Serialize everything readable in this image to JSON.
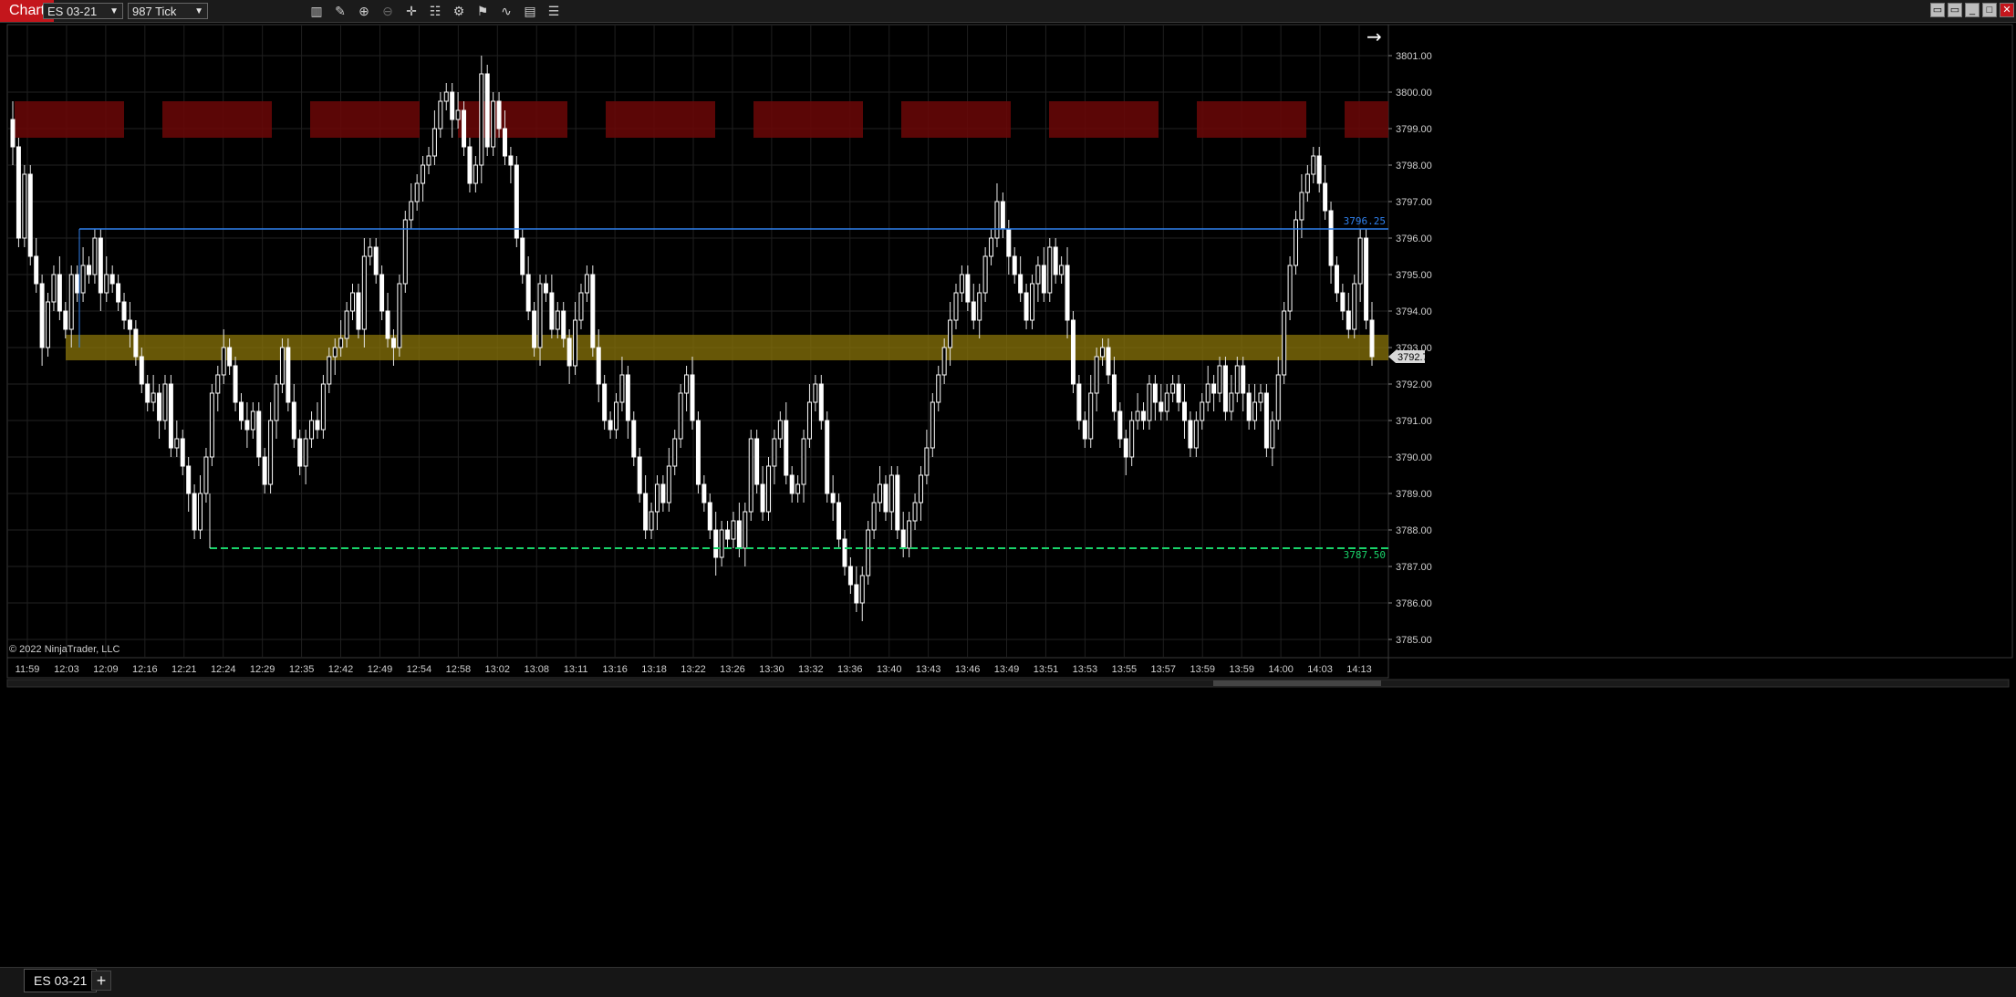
{
  "app": {
    "title": "Chart"
  },
  "toolbar": {
    "instrument": "ES 03-21",
    "period": "987 Tick",
    "icons": [
      "bar-style-icon",
      "drawing-tool-icon",
      "zoom-in-icon",
      "zoom-out-icon",
      "crosshair-icon",
      "data-box-icon",
      "properties-icon",
      "strategies-icon",
      "indicators-icon",
      "templates-icon",
      "chart-trader-icon"
    ]
  },
  "footer": {
    "tab_label": "ES 03-21",
    "add_tab_symbol": "+"
  },
  "copyright": "© 2022 NinjaTrader, LLC",
  "chart_data": {
    "type": "candlestick",
    "y_ticks": [
      3785,
      3786,
      3787,
      3788,
      3789,
      3790,
      3791,
      3792,
      3793,
      3794,
      3795,
      3796,
      3797,
      3798,
      3799,
      3800,
      3801
    ],
    "ylim": [
      3784.5,
      3801.85
    ],
    "x_ticks": [
      "11:59",
      "12:03",
      "12:09",
      "12:16",
      "12:21",
      "12:24",
      "12:29",
      "12:35",
      "12:42",
      "12:49",
      "12:54",
      "12:58",
      "13:02",
      "13:08",
      "13:11",
      "13:16",
      "13:18",
      "13:22",
      "13:26",
      "13:30",
      "13:32",
      "13:36",
      "13:40",
      "13:43",
      "13:46",
      "13:49",
      "13:51",
      "13:53",
      "13:55",
      "13:57",
      "13:59",
      "13:59",
      "14:00",
      "14:03",
      "14:13"
    ],
    "price_levels": [
      {
        "value": "3796.25",
        "color": "#2f80ed"
      },
      {
        "value": "3787.50",
        "color": "#19d36a"
      }
    ],
    "zone": {
      "low": 3792.75,
      "high": 3793.25,
      "color": "#8a7409"
    },
    "current_price": "3792.75",
    "session_blocks": {
      "low": 3798.75,
      "high": 3799.75,
      "color": "#6b0707"
    },
    "closes": [
      3798.5,
      3796,
      3797.75,
      3795.5,
      3794.75,
      3793,
      3794.25,
      3795,
      3794,
      3793.5,
      3795,
      3794.5,
      3795.25,
      3795,
      3796,
      3794.5,
      3795,
      3794.75,
      3794.25,
      3793.75,
      3793.5,
      3792.75,
      3792,
      3791.5,
      3791.75,
      3791,
      3792,
      3790.25,
      3790.5,
      3789.75,
      3789,
      3788,
      3789,
      3790,
      3791.75,
      3792.25,
      3793,
      3792.5,
      3791.5,
      3791,
      3790.75,
      3791.25,
      3790,
      3789.25,
      3791,
      3792,
      3793,
      3791.5,
      3790.5,
      3789.75,
      3790.5,
      3791,
      3790.75,
      3792,
      3792.75,
      3793,
      3793.25,
      3794,
      3794.5,
      3793.5,
      3795.5,
      3795.75,
      3795,
      3794,
      3793.25,
      3793,
      3794.75,
      3796.5,
      3797,
      3797.5,
      3798,
      3798.25,
      3799,
      3799.75,
      3800,
      3799.25,
      3799.5,
      3798.5,
      3797.5,
      3798,
      3800.5,
      3798.5,
      3799.75,
      3799,
      3798.25,
      3798,
      3796,
      3795,
      3794,
      3793,
      3794.75,
      3794.5,
      3793.5,
      3794,
      3793.25,
      3792.5,
      3793.75,
      3794.5,
      3795,
      3793,
      3792,
      3791,
      3790.75,
      3791.5,
      3792.25,
      3791,
      3790,
      3789,
      3788,
      3788.5,
      3789.25,
      3788.75,
      3789.75,
      3790.5,
      3791.75,
      3792.25,
      3791,
      3789.25,
      3788.75,
      3788,
      3787.25,
      3788,
      3787.75,
      3788.25,
      3787.5,
      3788.5,
      3790.5,
      3789.25,
      3788.5,
      3789.75,
      3790.5,
      3791,
      3789.5,
      3789,
      3789.25,
      3790.5,
      3791.5,
      3792,
      3791,
      3789,
      3788.75,
      3787.75,
      3787,
      3786.5,
      3786,
      3786.75,
      3788,
      3788.75,
      3789.25,
      3788.5,
      3789.5,
      3788,
      3787.5,
      3788.25,
      3788.75,
      3789.5,
      3790.25,
      3791.5,
      3792.25,
      3793,
      3793.75,
      3794.5,
      3795,
      3794.25,
      3793.75,
      3794.5,
      3795.5,
      3796,
      3797,
      3796.25,
      3795.5,
      3795,
      3794.5,
      3793.75,
      3794.75,
      3795.25,
      3794.5,
      3795.75,
      3795,
      3795.25,
      3793.75,
      3792,
      3791,
      3790.5,
      3791.75,
      3792.75,
      3793,
      3792.25,
      3791.25,
      3790.5,
      3790,
      3791,
      3791.25,
      3791,
      3792,
      3791.5,
      3791.25,
      3791.75,
      3792,
      3791.5,
      3791,
      3790.25,
      3791,
      3791.5,
      3792,
      3791.75,
      3792.5,
      3791.25,
      3791.75,
      3792.5,
      3791.75,
      3791,
      3791.5,
      3791.75,
      3790.25,
      3791,
      3792.25,
      3794,
      3795.25,
      3796.5,
      3797.25,
      3797.75,
      3798.25,
      3797.5,
      3796.75,
      3795.25,
      3794.5,
      3794,
      3793.5,
      3794.75,
      3796,
      3793.75,
      3792.75
    ]
  }
}
